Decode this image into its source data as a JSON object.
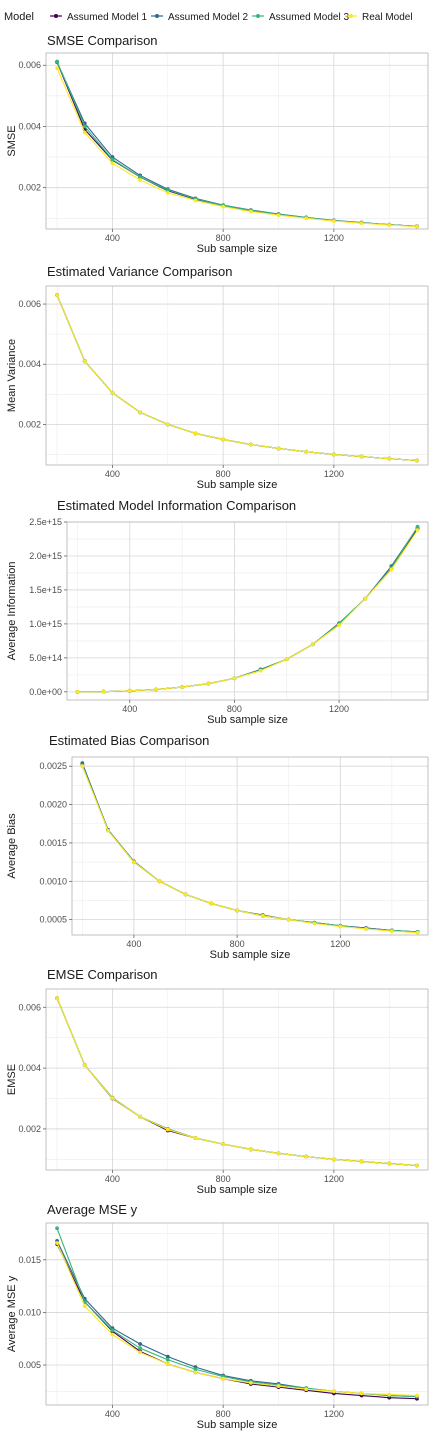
{
  "legend": {
    "title": "Model",
    "items": [
      {
        "label": "Assumed Model 1",
        "color": "#440154"
      },
      {
        "label": "Assumed Model 2",
        "color": "#31688e"
      },
      {
        "label": "Assumed Model 3",
        "color": "#35b779"
      },
      {
        "label": "Real Model",
        "color": "#fde725"
      }
    ]
  },
  "chart_data": [
    {
      "type": "line",
      "title": "SMSE Comparison",
      "xlabel": "Sub sample size",
      "ylabel": "SMSE",
      "xlim": [
        160,
        1540
      ],
      "ylim": [
        0.00065,
        0.0064
      ],
      "xticks": [
        400,
        800,
        1200
      ],
      "xtick_labels": [
        "400",
        "800",
        "1200"
      ],
      "yticks": [
        0.002,
        0.004,
        0.006
      ],
      "ytick_labels": [
        "0.002",
        "0.004",
        "0.006"
      ],
      "x": [
        200,
        300,
        400,
        500,
        600,
        700,
        800,
        900,
        1000,
        1100,
        1200,
        1300,
        1400,
        1500
      ],
      "series": [
        {
          "name": "Assumed Model 1",
          "values": [
            0.0061,
            0.0039,
            0.0029,
            0.00235,
            0.0019,
            0.00162,
            0.00142,
            0.00125,
            0.00113,
            0.00102,
            0.00092,
            0.00085,
            0.00079,
            0.00074
          ]
        },
        {
          "name": "Assumed Model 2",
          "values": [
            0.0061,
            0.0041,
            0.003,
            0.0024,
            0.00195,
            0.00165,
            0.00143,
            0.00127,
            0.00114,
            0.00103,
            0.00093,
            0.00086,
            0.00079,
            0.00074
          ]
        },
        {
          "name": "Assumed Model 3",
          "values": [
            0.00612,
            0.004,
            0.00292,
            0.00235,
            0.00192,
            0.00163,
            0.00142,
            0.00126,
            0.00113,
            0.00102,
            0.00092,
            0.00085,
            0.00079,
            0.00073
          ]
        },
        {
          "name": "Real Model",
          "values": [
            0.0059,
            0.0038,
            0.0028,
            0.00225,
            0.00183,
            0.00158,
            0.00138,
            0.00122,
            0.0011,
            0.001,
            0.00091,
            0.00084,
            0.00078,
            0.00073
          ]
        }
      ]
    },
    {
      "type": "line",
      "title": "Estimated Variance Comparison",
      "xlabel": "Sub sample size",
      "ylabel": "Mean Variance",
      "xlim": [
        160,
        1540
      ],
      "ylim": [
        0.00065,
        0.0066
      ],
      "xticks": [
        400,
        800,
        1200
      ],
      "xtick_labels": [
        "400",
        "800",
        "1200"
      ],
      "yticks": [
        0.002,
        0.004,
        0.006
      ],
      "ytick_labels": [
        "0.002",
        "0.004",
        "0.006"
      ],
      "x": [
        200,
        300,
        400,
        500,
        600,
        700,
        800,
        900,
        1000,
        1100,
        1200,
        1300,
        1400,
        1500
      ],
      "series": [
        {
          "name": "Assumed Model 1",
          "values": [
            0.0063,
            0.0041,
            0.00305,
            0.0024,
            0.002,
            0.0017,
            0.0015,
            0.00133,
            0.0012,
            0.00109,
            0.001,
            0.00093,
            0.00086,
            0.0008
          ]
        },
        {
          "name": "Assumed Model 2",
          "values": [
            0.0063,
            0.0041,
            0.00305,
            0.0024,
            0.002,
            0.0017,
            0.0015,
            0.00133,
            0.0012,
            0.00109,
            0.001,
            0.00093,
            0.00086,
            0.0008
          ]
        },
        {
          "name": "Assumed Model 3",
          "values": [
            0.0063,
            0.0041,
            0.00305,
            0.0024,
            0.002,
            0.0017,
            0.0015,
            0.00133,
            0.0012,
            0.00109,
            0.001,
            0.00093,
            0.00086,
            0.0008
          ]
        },
        {
          "name": "Real Model",
          "values": [
            0.0063,
            0.0041,
            0.00305,
            0.0024,
            0.002,
            0.0017,
            0.0015,
            0.00133,
            0.0012,
            0.00109,
            0.001,
            0.00093,
            0.00086,
            0.0008
          ]
        }
      ]
    },
    {
      "type": "line",
      "title": "Estimated Model Information Comparison",
      "xlabel": "Sub sample size",
      "ylabel": "Average Information",
      "xlim": [
        160,
        1540
      ],
      "ylim": [
        -120000000000000.0,
        2500000000000000.0
      ],
      "xticks": [
        400,
        800,
        1200
      ],
      "xtick_labels": [
        "400",
        "800",
        "1200"
      ],
      "yticks": [
        0,
        500000000000000.0,
        1000000000000000.0,
        1500000000000000.0,
        2000000000000000.0,
        2500000000000000.0
      ],
      "ytick_labels": [
        "0.0e+00",
        "5.0e+14",
        "1.0e+15",
        "1.5e+15",
        "2.0e+15",
        "2.5e+15"
      ],
      "x": [
        200,
        300,
        400,
        500,
        600,
        700,
        800,
        900,
        1000,
        1100,
        1200,
        1300,
        1400,
        1500
      ],
      "series": [
        {
          "name": "Assumed Model 1",
          "values": [
            0,
            3000000000000.0,
            15000000000000.0,
            35000000000000.0,
            70000000000000.0,
            120000000000000.0,
            200000000000000.0,
            320000000000000.0,
            480000000000000.0,
            700000000000000.0,
            1000000000000000.0,
            1370000000000000.0,
            1820000000000000.0,
            2400000000000000.0
          ]
        },
        {
          "name": "Assumed Model 2",
          "values": [
            0,
            3000000000000.0,
            15000000000000.0,
            35000000000000.0,
            70000000000000.0,
            120000000000000.0,
            200000000000000.0,
            330000000000000.0,
            480000000000000.0,
            700000000000000.0,
            1010000000000000.0,
            1370000000000000.0,
            1850000000000000.0,
            2420000000000000.0
          ]
        },
        {
          "name": "Assumed Model 3",
          "values": [
            0,
            3000000000000.0,
            15000000000000.0,
            35000000000000.0,
            70000000000000.0,
            120000000000000.0,
            200000000000000.0,
            320000000000000.0,
            480000000000000.0,
            700000000000000.0,
            1000000000000000.0,
            1370000000000000.0,
            1820000000000000.0,
            2430000000000000.0
          ]
        },
        {
          "name": "Real Model",
          "values": [
            0,
            3000000000000.0,
            15000000000000.0,
            35000000000000.0,
            70000000000000.0,
            120000000000000.0,
            200000000000000.0,
            310000000000000.0,
            480000000000000.0,
            700000000000000.0,
            980000000000000.0,
            1370000000000000.0,
            1800000000000000.0,
            2380000000000000.0
          ]
        }
      ]
    },
    {
      "type": "line",
      "title": "Estimated Bias Comparison",
      "xlabel": "Sub sample size",
      "ylabel": "Average Bias",
      "xlim": [
        160,
        1540
      ],
      "ylim": [
        0.0003,
        0.00262
      ],
      "xticks": [
        400,
        800,
        1200
      ],
      "xtick_labels": [
        "400",
        "800",
        "1200"
      ],
      "yticks": [
        0.0005,
        0.001,
        0.0015,
        0.002,
        0.0025
      ],
      "ytick_labels": [
        "0.0005",
        "0.0010",
        "0.0015",
        "0.0020",
        "0.0025"
      ],
      "x": [
        200,
        300,
        400,
        500,
        600,
        700,
        800,
        900,
        1000,
        1100,
        1200,
        1300,
        1400,
        1500
      ],
      "series": [
        {
          "name": "Assumed Model 1",
          "values": [
            0.00252,
            0.00167,
            0.00125,
            0.001,
            0.00083,
            0.00071,
            0.00062,
            0.00055,
            0.0005,
            0.00046,
            0.00042,
            0.00039,
            0.00036,
            0.00034
          ]
        },
        {
          "name": "Assumed Model 2",
          "values": [
            0.00254,
            0.00167,
            0.00126,
            0.001,
            0.00083,
            0.00071,
            0.00062,
            0.00056,
            0.0005,
            0.00046,
            0.00042,
            0.00039,
            0.00036,
            0.00034
          ]
        },
        {
          "name": "Assumed Model 3",
          "values": [
            0.00251,
            0.00166,
            0.00125,
            0.001,
            0.00083,
            0.00071,
            0.00062,
            0.00055,
            0.0005,
            0.00046,
            0.00042,
            0.00038,
            0.00036,
            0.00034
          ]
        },
        {
          "name": "Real Model",
          "values": [
            0.0025,
            0.00166,
            0.00125,
            0.001,
            0.00083,
            0.00071,
            0.00062,
            0.00055,
            0.0005,
            0.00045,
            0.00041,
            0.00038,
            0.00035,
            0.00033
          ]
        }
      ]
    },
    {
      "type": "line",
      "title": "EMSE Comparison",
      "xlabel": "Sub sample size",
      "ylabel": "EMSE",
      "xlim": [
        160,
        1540
      ],
      "ylim": [
        0.00065,
        0.0066
      ],
      "xticks": [
        400,
        800,
        1200
      ],
      "xtick_labels": [
        "400",
        "800",
        "1200"
      ],
      "yticks": [
        0.002,
        0.004,
        0.006
      ],
      "ytick_labels": [
        "0.002",
        "0.004",
        "0.006"
      ],
      "x": [
        200,
        300,
        400,
        500,
        600,
        700,
        800,
        900,
        1000,
        1100,
        1200,
        1300,
        1400,
        1500
      ],
      "series": [
        {
          "name": "Assumed Model 1",
          "values": [
            0.0063,
            0.0041,
            0.003,
            0.0024,
            0.00195,
            0.0017,
            0.0015,
            0.00133,
            0.0012,
            0.00109,
            0.001,
            0.00093,
            0.00086,
            0.0008
          ]
        },
        {
          "name": "Assumed Model 2",
          "values": [
            0.0063,
            0.0041,
            0.00302,
            0.0024,
            0.002,
            0.0017,
            0.0015,
            0.00133,
            0.0012,
            0.00109,
            0.001,
            0.00093,
            0.00086,
            0.0008
          ]
        },
        {
          "name": "Assumed Model 3",
          "values": [
            0.0063,
            0.0041,
            0.00303,
            0.0024,
            0.002,
            0.0017,
            0.0015,
            0.00133,
            0.0012,
            0.00109,
            0.001,
            0.00093,
            0.00086,
            0.0008
          ]
        },
        {
          "name": "Real Model",
          "values": [
            0.0063,
            0.0041,
            0.00301,
            0.0024,
            0.00198,
            0.0017,
            0.0015,
            0.00133,
            0.0012,
            0.00109,
            0.001,
            0.00093,
            0.00086,
            0.0008
          ]
        }
      ]
    },
    {
      "type": "line",
      "title": "Average MSE y",
      "xlabel": "Sub sample size",
      "ylabel": "Average MSE y",
      "xlim": [
        160,
        1540
      ],
      "ylim": [
        0.0012,
        0.0185
      ],
      "xticks": [
        400,
        800,
        1200
      ],
      "xtick_labels": [
        "400",
        "800",
        "1200"
      ],
      "yticks": [
        0.005,
        0.01,
        0.015
      ],
      "ytick_labels": [
        "0.005",
        "0.010",
        "0.015"
      ],
      "x": [
        200,
        300,
        400,
        500,
        600,
        700,
        800,
        900,
        1000,
        1100,
        1200,
        1300,
        1400,
        1500
      ],
      "series": [
        {
          "name": "Assumed Model 1",
          "values": [
            0.0165,
            0.011,
            0.0082,
            0.0063,
            0.0051,
            0.0043,
            0.0037,
            0.0032,
            0.0029,
            0.0026,
            0.0023,
            0.0021,
            0.0019,
            0.0018
          ]
        },
        {
          "name": "Assumed Model 2",
          "values": [
            0.0168,
            0.0113,
            0.0085,
            0.007,
            0.0058,
            0.0048,
            0.004,
            0.0035,
            0.0032,
            0.0028,
            0.0025,
            0.0023,
            0.0021,
            0.002
          ]
        },
        {
          "name": "Assumed Model 3",
          "values": [
            0.018,
            0.011,
            0.0083,
            0.0066,
            0.0055,
            0.0046,
            0.0039,
            0.0034,
            0.0031,
            0.0028,
            0.0025,
            0.0023,
            0.0021,
            0.002
          ]
        },
        {
          "name": "Real Model",
          "values": [
            0.0166,
            0.0106,
            0.0079,
            0.0062,
            0.0051,
            0.0043,
            0.0037,
            0.0033,
            0.003,
            0.0027,
            0.0025,
            0.0023,
            0.0022,
            0.0021
          ]
        }
      ]
    }
  ]
}
